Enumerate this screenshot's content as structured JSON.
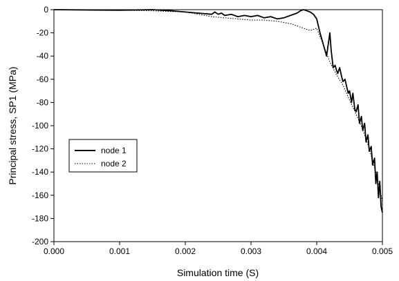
{
  "chart_data": {
    "type": "line",
    "xlabel": "Simulation time (S)",
    "ylabel": "Principal stress, SP1 (MPa)",
    "xlim": [
      0,
      0.005
    ],
    "ylim": [
      -200,
      0
    ],
    "xticks": [
      0,
      0.001,
      0.002,
      0.003,
      0.004,
      0.005
    ],
    "xtick_labels": [
      "0.000",
      "0.001",
      "0.002",
      "0.003",
      "0.004",
      "0.005"
    ],
    "yticks": [
      0,
      -20,
      -40,
      -60,
      -80,
      -100,
      -120,
      -140,
      -160,
      -180,
      -200
    ],
    "ytick_labels": [
      "0",
      "-20",
      "-40",
      "-60",
      "-80",
      "-100",
      "-120",
      "-140",
      "-160",
      "-180",
      "-200"
    ],
    "grid": false,
    "legend_position": "middle-left",
    "series": [
      {
        "name": "node 1",
        "style": "solid",
        "color": "#000000",
        "x": [
          0,
          0.001,
          0.0015,
          0.0018,
          0.002,
          0.0022,
          0.0024,
          0.00245,
          0.0025,
          0.00255,
          0.0026,
          0.0027,
          0.0028,
          0.0029,
          0.003,
          0.0031,
          0.0032,
          0.0033,
          0.0034,
          0.0035,
          0.0036,
          0.0037,
          0.00375,
          0.0038,
          0.00385,
          0.0039,
          0.00395,
          0.004,
          0.00405,
          0.0041,
          0.00415,
          0.0042,
          0.00422,
          0.00425,
          0.00428,
          0.0043,
          0.00432,
          0.00435,
          0.00438,
          0.0044,
          0.00443,
          0.00445,
          0.00448,
          0.0045,
          0.00453,
          0.00455,
          0.00458,
          0.0046,
          0.00463,
          0.00465,
          0.00468,
          0.0047,
          0.00473,
          0.00475,
          0.00478,
          0.0048,
          0.00483,
          0.00485,
          0.00488,
          0.0049,
          0.00492,
          0.00494,
          0.00496,
          0.00498,
          0.005
        ],
        "y": [
          0,
          -0.5,
          0,
          -1,
          -2,
          -3,
          -4,
          -2,
          -4,
          -3,
          -5,
          -4,
          -6,
          -5,
          -6,
          -5,
          -7,
          -6,
          -8,
          -7,
          -5,
          -3,
          -1,
          0,
          -1,
          -2,
          -4,
          -8,
          -20,
          -30,
          -40,
          -20,
          -35,
          -50,
          -48,
          -52,
          -55,
          -50,
          -58,
          -62,
          -60,
          -65,
          -72,
          -70,
          -80,
          -72,
          -86,
          -88,
          -82,
          -98,
          -92,
          -104,
          -98,
          -114,
          -108,
          -122,
          -118,
          -134,
          -128,
          -150,
          -140,
          -162,
          -148,
          -170,
          -175
        ]
      },
      {
        "name": "node 2",
        "style": "dotted",
        "color": "#000000",
        "x": [
          0,
          0.001,
          0.0015,
          0.002,
          0.0022,
          0.0024,
          0.0026,
          0.0028,
          0.003,
          0.0032,
          0.0034,
          0.0036,
          0.0037,
          0.0038,
          0.0039,
          0.004,
          0.0041,
          0.0042,
          0.0043,
          0.0044,
          0.0045,
          0.0046,
          0.0047,
          0.0048,
          0.0049,
          0.005
        ],
        "y": [
          0,
          -0.5,
          -1,
          -2,
          -4,
          -6,
          -7,
          -8,
          -9,
          -9,
          -10,
          -12,
          -14,
          -16,
          -18,
          -16,
          -30,
          -45,
          -56,
          -65,
          -78,
          -90,
          -103,
          -120,
          -140,
          -165
        ]
      }
    ]
  }
}
